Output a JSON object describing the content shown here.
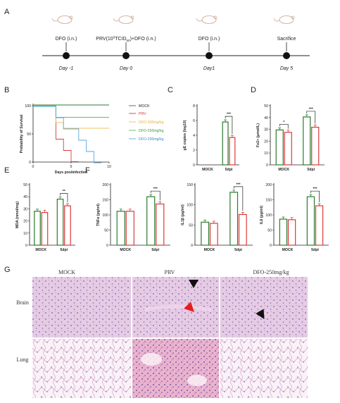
{
  "panels": {
    "a": "A",
    "b": "B",
    "c": "C",
    "d": "D",
    "e": "E",
    "f": "F",
    "g": "G"
  },
  "timeline": {
    "events": [
      {
        "label": "DFO (i.n.)",
        "day": "Day -1"
      },
      {
        "label_parts": [
          "PRV(10",
          "5",
          "TCID",
          "50",
          ")+DFO (i.n.)"
        ],
        "day": "Day 0"
      },
      {
        "label": "DFO (i.n.)",
        "day": "Day1"
      },
      {
        "label": "Sacrifice",
        "day": "Day 5"
      }
    ]
  },
  "survival": {
    "ylabel": "Probability of Survival",
    "xlabel": "Days postinfection",
    "legend": [
      {
        "name": "MOCK",
        "color": "#2b7a2b"
      },
      {
        "name": "PRV",
        "color": "#d93a3a"
      },
      {
        "name": "DFO-300mg/kg",
        "color": "#f0c060"
      },
      {
        "name": "DFO-250mg/kg",
        "color": "#5cc05c"
      },
      {
        "name": "DFO-200mg/kg",
        "color": "#5aa8e0"
      }
    ]
  },
  "chart_data": [
    {
      "panel": "B",
      "type": "line",
      "xlabel": "Days postinfection",
      "ylabel": "Probability of Survival",
      "xlim": [
        0,
        10
      ],
      "ylim": [
        0,
        100
      ],
      "xticks": [
        "0",
        "5",
        "10"
      ],
      "yticks": [
        "0",
        "50",
        "100"
      ],
      "series": [
        {
          "name": "MOCK",
          "step": [
            [
              0,
              100
            ],
            [
              10,
              100
            ]
          ]
        },
        {
          "name": "PRV",
          "step": [
            [
              0,
              100
            ],
            [
              3,
              100
            ],
            [
              3,
              40
            ],
            [
              4,
              40
            ],
            [
              4,
              20
            ],
            [
              5,
              20
            ],
            [
              5,
              0
            ],
            [
              6,
              0
            ]
          ]
        },
        {
          "name": "DFO-300mg/kg",
          "step": [
            [
              0,
              100
            ],
            [
              3,
              100
            ],
            [
              3,
              70
            ],
            [
              4,
              70
            ],
            [
              4,
              60
            ],
            [
              10,
              60
            ]
          ]
        },
        {
          "name": "DFO-250mg/kg",
          "step": [
            [
              0,
              100
            ],
            [
              3,
              100
            ],
            [
              3,
              80
            ],
            [
              10,
              80
            ]
          ]
        },
        {
          "name": "DFO-200mg/kg",
          "step": [
            [
              0,
              100
            ],
            [
              3,
              100
            ],
            [
              3,
              80
            ],
            [
              4,
              80
            ],
            [
              4,
              60
            ],
            [
              6,
              60
            ],
            [
              6,
              40
            ],
            [
              7,
              40
            ],
            [
              7,
              20
            ],
            [
              8,
              20
            ],
            [
              8,
              0
            ],
            [
              9,
              0
            ]
          ]
        }
      ]
    },
    {
      "panel": "C",
      "type": "bar",
      "ylabel": "gE copies (log10)",
      "categories": [
        "MOCK",
        "5dpi"
      ],
      "ylim": [
        0,
        8
      ],
      "yticks": [
        "0",
        "2",
        "4",
        "6",
        "8"
      ],
      "series": [
        {
          "name": "",
          "values": [
            0,
            5.8
          ]
        },
        {
          "name": "",
          "values": [
            0,
            3.7
          ]
        }
      ],
      "sig": "***"
    },
    {
      "panel": "D",
      "type": "bar",
      "ylabel": "Fe2+ (μmol/L)",
      "categories": [
        "MOCK",
        "5dpi"
      ],
      "ylim": [
        0,
        50
      ],
      "yticks": [
        "0",
        "10",
        "20",
        "30",
        "40",
        "50"
      ],
      "series": [
        {
          "name": "",
          "values": [
            29.5,
            40.5
          ]
        },
        {
          "name": "",
          "values": [
            27.5,
            31.8
          ]
        }
      ],
      "sig": [
        "*",
        "***"
      ]
    },
    {
      "panel": "E",
      "type": "bar",
      "ylabel": "MDA (nmol/mg)",
      "categories": [
        "MOCK",
        "5dpi"
      ],
      "ylim": [
        0,
        50
      ],
      "yticks": [
        "0",
        "10",
        "20",
        "30",
        "40",
        "50"
      ],
      "series": [
        {
          "name": "",
          "values": [
            28,
            38
          ]
        },
        {
          "name": "",
          "values": [
            27,
            32.5
          ]
        }
      ],
      "sig": "**"
    },
    {
      "panel": "F1",
      "type": "bar",
      "ylabel": "TNFα (pg/ml)",
      "categories": [
        "MOCK",
        "5dpi"
      ],
      "ylim": [
        0,
        200
      ],
      "yticks": [
        "0",
        "50",
        "100",
        "150",
        "200"
      ],
      "series": [
        {
          "name": "",
          "values": [
            112,
            160
          ]
        },
        {
          "name": "",
          "values": [
            112,
            136
          ]
        }
      ],
      "sig": "***"
    },
    {
      "panel": "F2",
      "type": "bar",
      "ylabel": "IL1β (pg/ml)",
      "categories": [
        "MOCK",
        "5dpi"
      ],
      "ylim": [
        0,
        150
      ],
      "yticks": [
        "0",
        "50",
        "100",
        "150"
      ],
      "series": [
        {
          "name": "",
          "values": [
            57,
            131
          ]
        },
        {
          "name": "",
          "values": [
            54,
            76
          ]
        }
      ],
      "sig": "***"
    },
    {
      "panel": "F3",
      "type": "bar",
      "ylabel": "IL6 (pg/ml)",
      "categories": [
        "MOCK",
        "5dpi"
      ],
      "ylim": [
        0,
        200
      ],
      "yticks": [
        "0",
        "50",
        "100",
        "150",
        "200"
      ],
      "series": [
        {
          "name": "",
          "values": [
            86,
            160
          ]
        },
        {
          "name": "",
          "values": [
            84,
            130
          ]
        }
      ],
      "sig": "***"
    }
  ],
  "histology": {
    "columns": [
      "MOCK",
      "PRV",
      "DFO-250mg/kg"
    ],
    "rows": [
      "Brain",
      "Lung"
    ]
  },
  "colors": {
    "green": "#2b7a2b",
    "red": "#d93a3a",
    "tissue_brain": "#e8cde6",
    "tissue_lung": "#f4e4ef"
  }
}
